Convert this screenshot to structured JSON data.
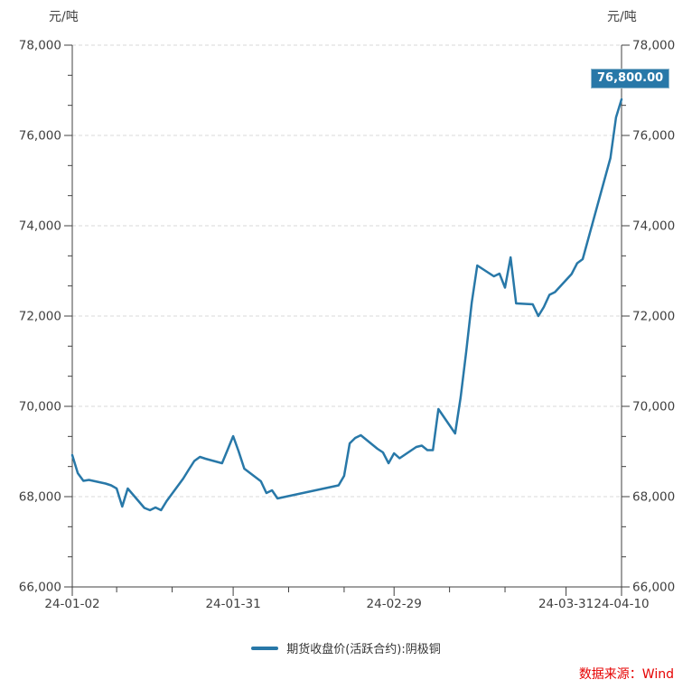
{
  "chart": {
    "unit_left": "元/吨",
    "unit_right": "元/吨",
    "last_price_label": "76,800.00",
    "legend_label": "期货收盘价(活跃合约):阴极铜",
    "source": "数据来源：Wind"
  },
  "colors": {
    "line": "#2878a8",
    "label_box_bg": "#2878a8",
    "label_box_border": "#8fb8cd",
    "grid": "#d9d9d9",
    "axis": "#404040",
    "tick_text": "#404040",
    "legend_text": "#333333",
    "source_text": "#e60000"
  },
  "chart_data": {
    "type": "line",
    "title": "",
    "xlabel": "",
    "ylabel": "元/吨",
    "ylim": [
      66000,
      78000
    ],
    "y_tick_step": 2000,
    "y_tick_labels": [
      "66,000",
      "68,000",
      "70,000",
      "72,000",
      "74,000",
      "76,000",
      "78,000"
    ],
    "grid": "dashed-horizontal",
    "legend_position": "bottom-center",
    "x_range": [
      "24-01-02",
      "24-04-10"
    ],
    "x_ticks": [
      "24-01-02",
      "24-01-31",
      "24-02-29",
      "24-03-31",
      "24-04-10"
    ],
    "x_minor_ticks": [
      "24-01-10",
      "24-01-20",
      "24-02-10",
      "24-02-20",
      "24-03-10",
      "24-03-20"
    ],
    "last_value": 76800.0,
    "series": [
      {
        "name": "期货收盘价(活跃合约):阴极铜",
        "color": "#2878a8",
        "points": [
          [
            "24-01-02",
            68920
          ],
          [
            "24-01-03",
            68520
          ],
          [
            "24-01-04",
            68350
          ],
          [
            "24-01-05",
            68370
          ],
          [
            "24-01-08",
            68290
          ],
          [
            "24-01-09",
            68250
          ],
          [
            "24-01-10",
            68180
          ],
          [
            "24-01-11",
            67780
          ],
          [
            "24-01-12",
            68180
          ],
          [
            "24-01-15",
            67750
          ],
          [
            "24-01-16",
            67700
          ],
          [
            "24-01-17",
            67760
          ],
          [
            "24-01-18",
            67700
          ],
          [
            "24-01-19",
            67900
          ],
          [
            "24-01-22",
            68400
          ],
          [
            "24-01-23",
            68600
          ],
          [
            "24-01-24",
            68790
          ],
          [
            "24-01-25",
            68880
          ],
          [
            "24-01-26",
            68840
          ],
          [
            "24-01-29",
            68740
          ],
          [
            "24-01-30",
            69040
          ],
          [
            "24-01-31",
            69340
          ],
          [
            "24-02-01",
            69000
          ],
          [
            "24-02-02",
            68620
          ],
          [
            "24-02-05",
            68340
          ],
          [
            "24-02-06",
            68080
          ],
          [
            "24-02-07",
            68140
          ],
          [
            "24-02-08",
            67960
          ],
          [
            "24-02-19",
            68250
          ],
          [
            "24-02-20",
            68460
          ],
          [
            "24-02-21",
            69180
          ],
          [
            "24-02-22",
            69300
          ],
          [
            "24-02-23",
            69360
          ],
          [
            "24-02-26",
            69060
          ],
          [
            "24-02-27",
            68980
          ],
          [
            "24-02-28",
            68740
          ],
          [
            "24-02-29",
            68960
          ],
          [
            "24-03-01",
            68850
          ],
          [
            "24-03-04",
            69100
          ],
          [
            "24-03-05",
            69130
          ],
          [
            "24-03-06",
            69030
          ],
          [
            "24-03-07",
            69030
          ],
          [
            "24-03-08",
            69940
          ],
          [
            "24-03-11",
            69400
          ],
          [
            "24-03-12",
            70200
          ],
          [
            "24-03-13",
            71200
          ],
          [
            "24-03-14",
            72300
          ],
          [
            "24-03-15",
            73120
          ],
          [
            "24-03-18",
            72880
          ],
          [
            "24-03-19",
            72940
          ],
          [
            "24-03-20",
            72630
          ],
          [
            "24-03-21",
            73300
          ],
          [
            "24-03-22",
            72280
          ],
          [
            "24-03-25",
            72260
          ],
          [
            "24-03-26",
            72000
          ],
          [
            "24-03-27",
            72200
          ],
          [
            "24-03-28",
            72470
          ],
          [
            "24-03-29",
            72530
          ],
          [
            "24-04-01",
            72930
          ],
          [
            "24-04-02",
            73170
          ],
          [
            "24-04-03",
            73260
          ],
          [
            "24-04-08",
            75500
          ],
          [
            "24-04-09",
            76400
          ],
          [
            "24-04-10",
            76800
          ]
        ]
      }
    ]
  }
}
